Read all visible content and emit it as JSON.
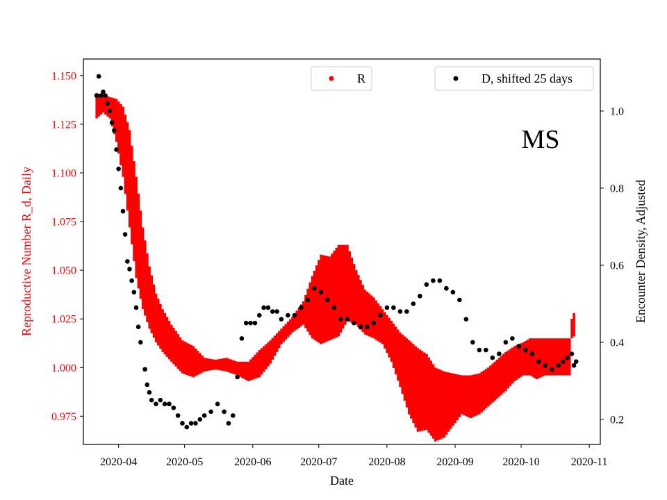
{
  "chart_data": {
    "type": "scatter",
    "region_label": "MS",
    "xlabel": "Date",
    "ylabel_left": "Reproductive Number R_d, Daily",
    "ylabel_right": "Encounter Density, Adjusted",
    "xlim": [
      "2020-03-16",
      "2020-11-06"
    ],
    "ylim_left": [
      0.9605,
      1.1585
    ],
    "ylim_right": [
      0.135,
      1.135
    ],
    "x_ticks": [
      "2020-04",
      "2020-05",
      "2020-06",
      "2020-07",
      "2020-08",
      "2020-09",
      "2020-10",
      "2020-11"
    ],
    "y_ticks_left": [
      "0.975",
      "1.000",
      "1.025",
      "1.050",
      "1.075",
      "1.100",
      "1.125",
      "1.150"
    ],
    "y_ticks_right": [
      "0.2",
      "0.4",
      "0.6",
      "0.8",
      "1.0"
    ],
    "legend_r": "R",
    "legend_d": "D, shifted 25 days",
    "colors": {
      "r": "#ff0000",
      "d": "#000000",
      "left_axis": "#ff0000",
      "right_axis": "#000000"
    },
    "r_series": {
      "name": "R",
      "start_date": "2020-03-22",
      "dates": [
        "2020-03-22",
        "2020-03-25",
        "2020-03-28",
        "2020-03-31",
        "2020-04-03",
        "2020-04-06",
        "2020-04-09",
        "2020-04-12",
        "2020-04-15",
        "2020-04-18",
        "2020-04-21",
        "2020-04-25",
        "2020-04-30",
        "2020-05-05",
        "2020-05-10",
        "2020-05-15",
        "2020-05-20",
        "2020-05-25",
        "2020-05-30",
        "2020-06-04",
        "2020-06-09",
        "2020-06-14",
        "2020-06-19",
        "2020-06-24",
        "2020-06-28",
        "2020-07-02",
        "2020-07-06",
        "2020-07-10",
        "2020-07-14",
        "2020-07-18",
        "2020-07-22",
        "2020-07-26",
        "2020-07-30",
        "2020-08-03",
        "2020-08-07",
        "2020-08-11",
        "2020-08-15",
        "2020-08-19",
        "2020-08-23",
        "2020-08-27",
        "2020-08-31",
        "2020-09-04",
        "2020-09-08",
        "2020-09-12",
        "2020-09-16",
        "2020-09-20",
        "2020-09-24",
        "2020-09-28",
        "2020-10-02",
        "2020-10-05",
        "2020-10-08",
        "2020-10-12",
        "2020-10-16",
        "2020-10-20",
        "2020-10-22",
        "2020-10-23",
        "2020-10-24",
        "2020-10-25"
      ],
      "upper": [
        1.141,
        1.14,
        1.139,
        1.138,
        1.134,
        1.122,
        1.098,
        1.072,
        1.052,
        1.038,
        1.03,
        1.022,
        1.014,
        1.011,
        1.005,
        1.004,
        1.005,
        1.003,
        1.003,
        1.009,
        1.014,
        1.02,
        1.026,
        1.034,
        1.047,
        1.058,
        1.057,
        1.063,
        1.063,
        1.05,
        1.04,
        1.036,
        1.03,
        1.024,
        1.018,
        1.014,
        1.01,
        1.007,
        1.0,
        0.998,
        0.997,
        0.996,
        0.996,
        0.997,
        1.0,
        1.004,
        1.008,
        1.011,
        1.013,
        1.015,
        1.015,
        1.015,
        1.015,
        1.015,
        1.015,
        1.015,
        1.025,
        1.028
      ],
      "lower": [
        1.128,
        1.131,
        1.128,
        1.116,
        1.098,
        1.072,
        1.046,
        1.03,
        1.02,
        1.013,
        1.008,
        1.003,
        0.997,
        0.995,
        0.998,
        0.999,
        0.998,
        0.996,
        0.993,
        0.995,
        1.002,
        1.012,
        1.018,
        1.022,
        1.015,
        1.012,
        1.014,
        1.016,
        1.024,
        1.022,
        1.017,
        1.015,
        1.012,
        1.003,
        0.99,
        0.976,
        0.967,
        0.968,
        0.962,
        0.964,
        0.97,
        0.976,
        0.974,
        0.976,
        0.98,
        0.984,
        0.988,
        0.993,
        0.996,
        0.996,
        0.994,
        0.996,
        0.996,
        0.996,
        0.996,
        0.996,
        1.015,
        1.016
      ]
    },
    "d_series": {
      "name": "D, shifted 25 days",
      "dates": [
        "2020-03-22",
        "2020-03-23",
        "2020-03-24",
        "2020-03-25",
        "2020-03-26",
        "2020-03-27",
        "2020-03-28",
        "2020-03-29",
        "2020-03-30",
        "2020-03-31",
        "2020-04-01",
        "2020-04-02",
        "2020-04-03",
        "2020-04-04",
        "2020-04-05",
        "2020-04-06",
        "2020-04-07",
        "2020-04-08",
        "2020-04-09",
        "2020-04-10",
        "2020-04-11",
        "2020-04-13",
        "2020-04-14",
        "2020-04-15",
        "2020-04-16",
        "2020-04-18",
        "2020-04-20",
        "2020-04-22",
        "2020-04-24",
        "2020-04-26",
        "2020-04-28",
        "2020-04-30",
        "2020-05-02",
        "2020-05-04",
        "2020-05-06",
        "2020-05-08",
        "2020-05-10",
        "2020-05-13",
        "2020-05-16",
        "2020-05-19",
        "2020-05-21",
        "2020-05-23",
        "2020-05-25",
        "2020-05-27",
        "2020-05-29",
        "2020-05-31",
        "2020-06-02",
        "2020-06-04",
        "2020-06-06",
        "2020-06-08",
        "2020-06-10",
        "2020-06-12",
        "2020-06-14",
        "2020-06-17",
        "2020-06-20",
        "2020-06-23",
        "2020-06-26",
        "2020-06-29",
        "2020-07-02",
        "2020-07-05",
        "2020-07-08",
        "2020-07-11",
        "2020-07-14",
        "2020-07-17",
        "2020-07-20",
        "2020-07-23",
        "2020-07-26",
        "2020-07-29",
        "2020-08-01",
        "2020-08-04",
        "2020-08-07",
        "2020-08-10",
        "2020-08-13",
        "2020-08-16",
        "2020-08-19",
        "2020-08-22",
        "2020-08-25",
        "2020-08-28",
        "2020-08-31",
        "2020-09-03",
        "2020-09-06",
        "2020-09-09",
        "2020-09-12",
        "2020-09-15",
        "2020-09-18",
        "2020-09-21",
        "2020-09-24",
        "2020-09-27",
        "2020-09-30",
        "2020-10-03",
        "2020-10-06",
        "2020-10-09",
        "2020-10-12",
        "2020-10-15",
        "2020-10-18",
        "2020-10-20",
        "2020-10-22",
        "2020-10-24",
        "2020-10-25",
        "2020-10-26"
      ],
      "values": [
        1.04,
        1.09,
        1.04,
        1.05,
        1.04,
        1.02,
        1.0,
        0.97,
        0.95,
        0.9,
        0.85,
        0.8,
        0.74,
        0.68,
        0.61,
        0.59,
        0.56,
        0.53,
        0.49,
        0.44,
        0.4,
        0.33,
        0.29,
        0.27,
        0.25,
        0.24,
        0.25,
        0.24,
        0.24,
        0.23,
        0.21,
        0.19,
        0.18,
        0.19,
        0.19,
        0.2,
        0.21,
        0.22,
        0.24,
        0.22,
        0.19,
        0.21,
        0.31,
        0.41,
        0.45,
        0.45,
        0.45,
        0.47,
        0.49,
        0.49,
        0.48,
        0.48,
        0.46,
        0.47,
        0.47,
        0.49,
        0.51,
        0.54,
        0.53,
        0.51,
        0.49,
        0.46,
        0.46,
        0.45,
        0.44,
        0.44,
        0.45,
        0.47,
        0.49,
        0.49,
        0.48,
        0.48,
        0.5,
        0.52,
        0.55,
        0.56,
        0.56,
        0.54,
        0.53,
        0.51,
        0.46,
        0.4,
        0.38,
        0.38,
        0.36,
        0.37,
        0.4,
        0.41,
        0.39,
        0.38,
        0.37,
        0.35,
        0.34,
        0.33,
        0.34,
        0.35,
        0.36,
        0.37,
        0.34,
        0.35
      ]
    }
  }
}
